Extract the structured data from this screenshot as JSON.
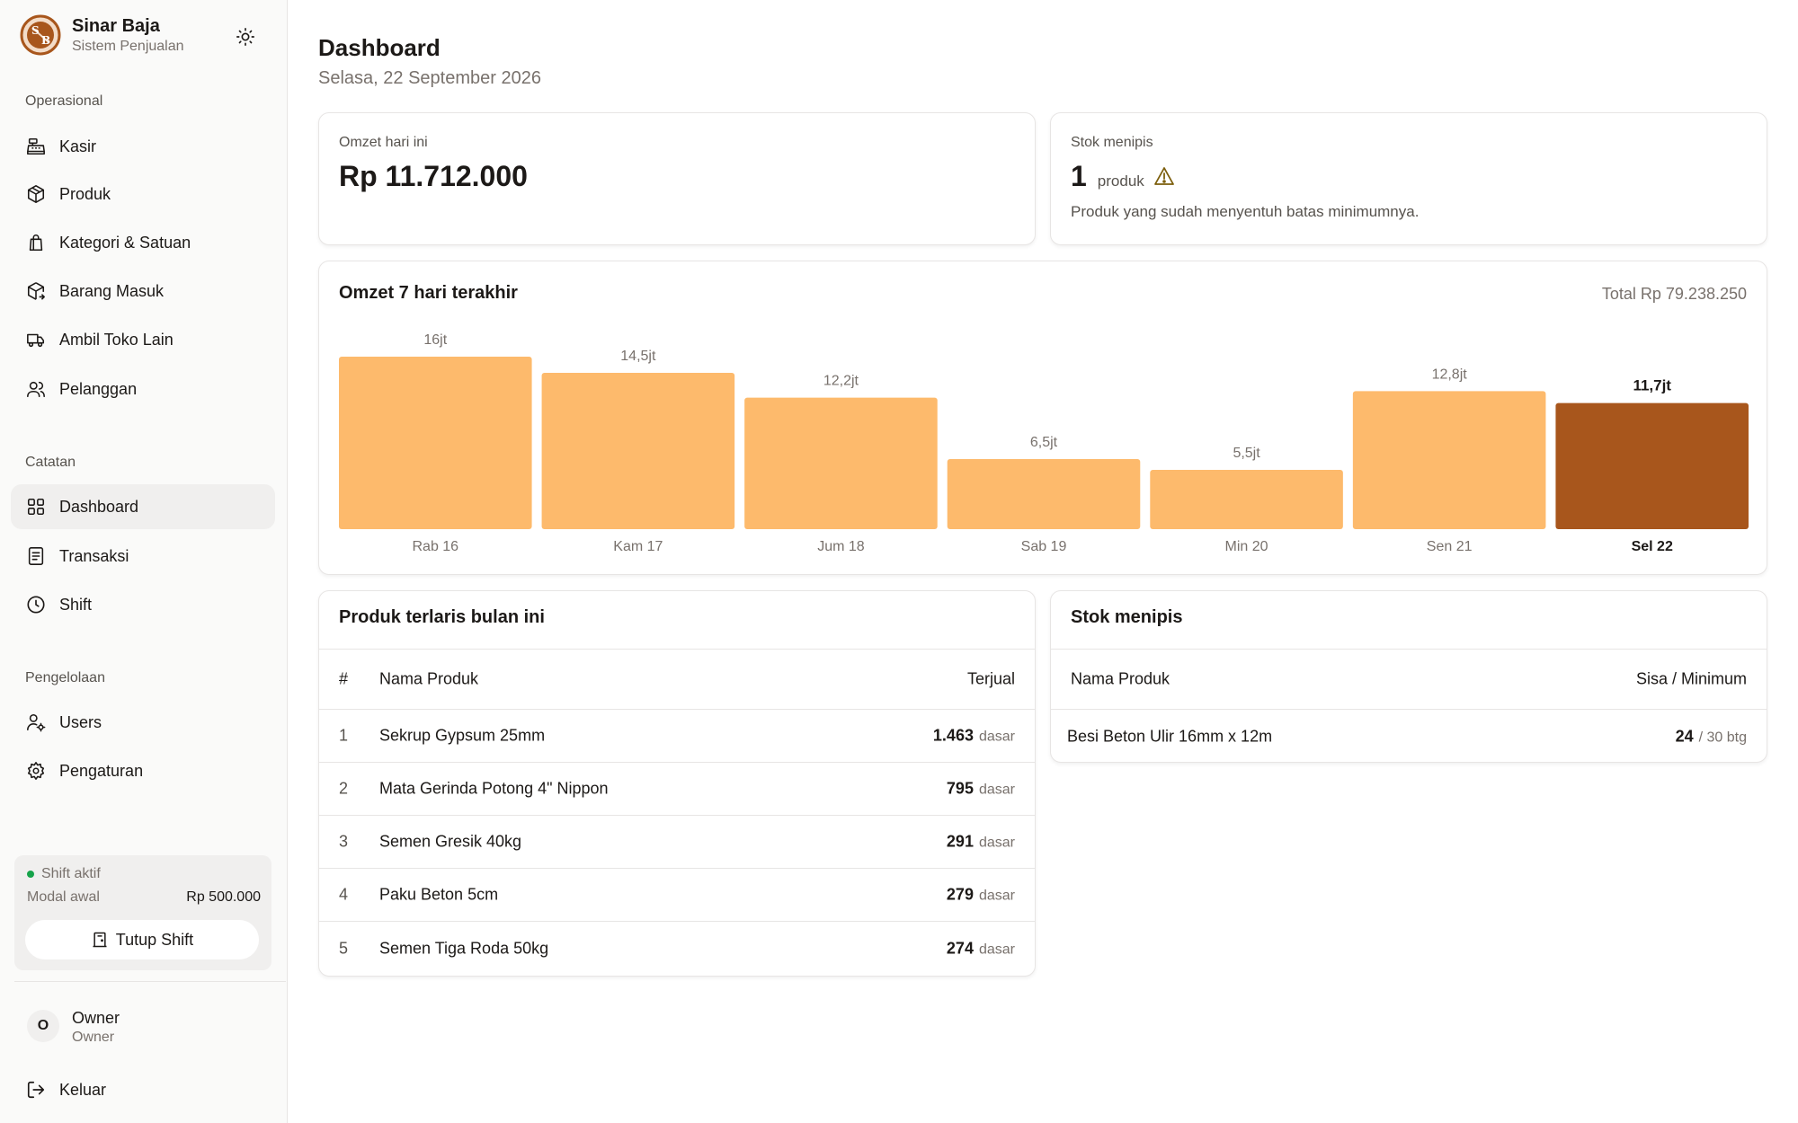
{
  "brand": {
    "initials": "SB",
    "name": "Sinar Baja",
    "subtitle": "Sistem Penjualan"
  },
  "sidebar": {
    "sections": [
      {
        "label": "Operasional",
        "items": [
          {
            "label": "Kasir",
            "icon": "cash-register-icon"
          },
          {
            "label": "Produk",
            "icon": "box-icon"
          },
          {
            "label": "Kategori & Satuan",
            "icon": "bag-icon"
          },
          {
            "label": "Barang Masuk",
            "icon": "package-in-icon"
          },
          {
            "label": "Ambil Toko Lain",
            "icon": "truck-icon"
          },
          {
            "label": "Pelanggan",
            "icon": "users-icon"
          }
        ]
      },
      {
        "label": "Catatan",
        "items": [
          {
            "label": "Dashboard",
            "icon": "grid-icon",
            "active": true
          },
          {
            "label": "Transaksi",
            "icon": "receipt-icon"
          },
          {
            "label": "Shift",
            "icon": "clock-icon"
          }
        ]
      },
      {
        "label": "Pengelolaan",
        "items": [
          {
            "label": "Users",
            "icon": "user-cog-icon"
          },
          {
            "label": "Pengaturan",
            "icon": "gear-icon"
          }
        ]
      }
    ],
    "shift": {
      "status": "Shift aktif",
      "modal_label": "Modal awal",
      "modal_value": "Rp 500.000",
      "close_label": "Tutup Shift"
    },
    "user": {
      "initial": "O",
      "name": "Owner",
      "role": "Owner"
    },
    "logout_label": "Keluar"
  },
  "header": {
    "title": "Dashboard",
    "date": "Selasa, 22 September 2026"
  },
  "stats": {
    "omzet": {
      "label": "Omzet hari ini",
      "value": "Rp 11.712.000"
    },
    "stock": {
      "label": "Stok menipis",
      "count": "1",
      "unit": "produk",
      "description": "Produk yang sudah menyentuh batas minimumnya."
    }
  },
  "chart_data": {
    "type": "bar",
    "title": "Omzet 7 hari terakhir",
    "total": "Total Rp 79.238.250",
    "categories": [
      "Rab 16",
      "Kam 17",
      "Jum 18",
      "Sab 19",
      "Min 20",
      "Sen 21",
      "Sel 22"
    ],
    "values": [
      16,
      14.5,
      12.2,
      6.5,
      5.5,
      12.8,
      11.7
    ],
    "value_labels": [
      "16jt",
      "14,5jt",
      "12,2jt",
      "6,5jt",
      "5,5jt",
      "12,8jt",
      "11,7jt"
    ],
    "unit": "jt",
    "ylim": [
      0,
      16
    ],
    "highlight_index": 6,
    "colors": {
      "bar": "#fdba6c",
      "highlight": "#a8561c"
    }
  },
  "top_products": {
    "title": "Produk terlaris bulan ini",
    "columns": [
      "#",
      "Nama Produk",
      "Terjual"
    ],
    "rows": [
      {
        "idx": "1",
        "name": "Sekrup Gypsum 25mm",
        "qty": "1.463",
        "unit": "dasar"
      },
      {
        "idx": "2",
        "name": "Mata Gerinda Potong 4\" Nippon",
        "qty": "795",
        "unit": "dasar"
      },
      {
        "idx": "3",
        "name": "Semen Gresik 40kg",
        "qty": "291",
        "unit": "dasar"
      },
      {
        "idx": "4",
        "name": "Paku Beton 5cm",
        "qty": "279",
        "unit": "dasar"
      },
      {
        "idx": "5",
        "name": "Semen Tiga Roda 50kg",
        "qty": "274",
        "unit": "dasar"
      }
    ]
  },
  "low_stock": {
    "title": "Stok menipis",
    "columns": [
      "Nama Produk",
      "Sisa / Minimum"
    ],
    "rows": [
      {
        "name": "Besi Beton Ulir 16mm x 12m",
        "remaining": "24",
        "minimum": "/ 30 btg"
      }
    ]
  },
  "colors": {
    "accent": "#a8561c",
    "bar": "#fdba6c",
    "status_active": "#16a34a"
  }
}
